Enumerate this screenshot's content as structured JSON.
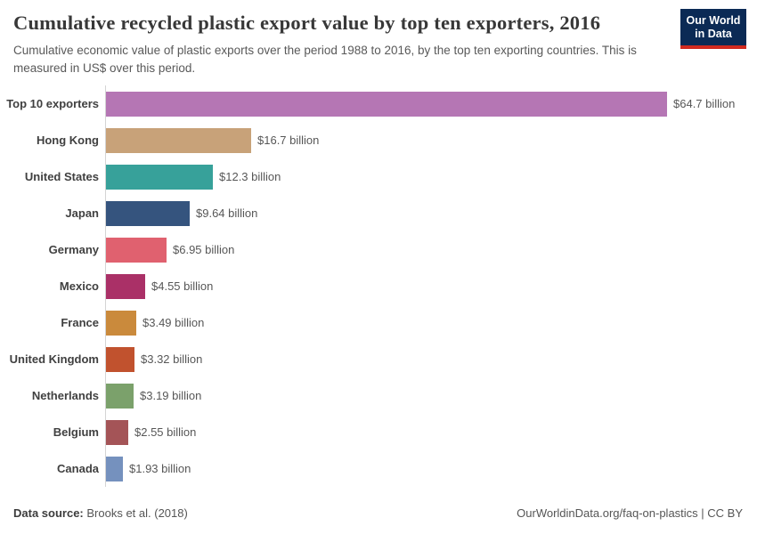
{
  "header": {
    "title": "Cumulative recycled plastic export value by top ten exporters, 2016",
    "subtitle": "Cumulative economic value of plastic exports over the period 1988 to 2016, by the top ten exporting countries. This is measured in US$ over this period.",
    "logo": {
      "line1": "Our World",
      "line2": "in Data",
      "bg_color": "#0b2a55",
      "stripe_color": "#d12a1f"
    }
  },
  "chart_data": {
    "type": "bar",
    "orientation": "horizontal",
    "title": "Cumulative recycled plastic export value by top ten exporters, 2016",
    "xlabel": "",
    "ylabel": "",
    "unit": "US$ billion",
    "xlim": [
      0,
      64.7
    ],
    "grid": false,
    "legend": "none",
    "categories": [
      "Top 10 exporters",
      "Hong Kong",
      "United States",
      "Japan",
      "Germany",
      "Mexico",
      "France",
      "United Kingdom",
      "Netherlands",
      "Belgium",
      "Canada"
    ],
    "values": [
      64.7,
      16.7,
      12.3,
      9.64,
      6.95,
      4.55,
      3.49,
      3.32,
      3.19,
      2.55,
      1.93
    ],
    "value_labels": [
      "$64.7 billion",
      "$16.7 billion",
      "$12.3 billion",
      "$9.64 billion",
      "$6.95 billion",
      "$4.55 billion",
      "$3.49 billion",
      "$3.32 billion",
      "$3.19 billion",
      "$2.55 billion",
      "$1.93 billion"
    ],
    "colors": [
      "#b576b4",
      "#c8a279",
      "#37a19a",
      "#35547e",
      "#e0616f",
      "#aa3067",
      "#ca8a3c",
      "#c1522e",
      "#7ba16b",
      "#a45457",
      "#7591be"
    ]
  },
  "footer": {
    "datasource_label": "Data source:",
    "datasource_value": "Brooks et al. (2018)",
    "right_text": "OurWorldinData.org/faq-on-plastics | CC BY"
  }
}
